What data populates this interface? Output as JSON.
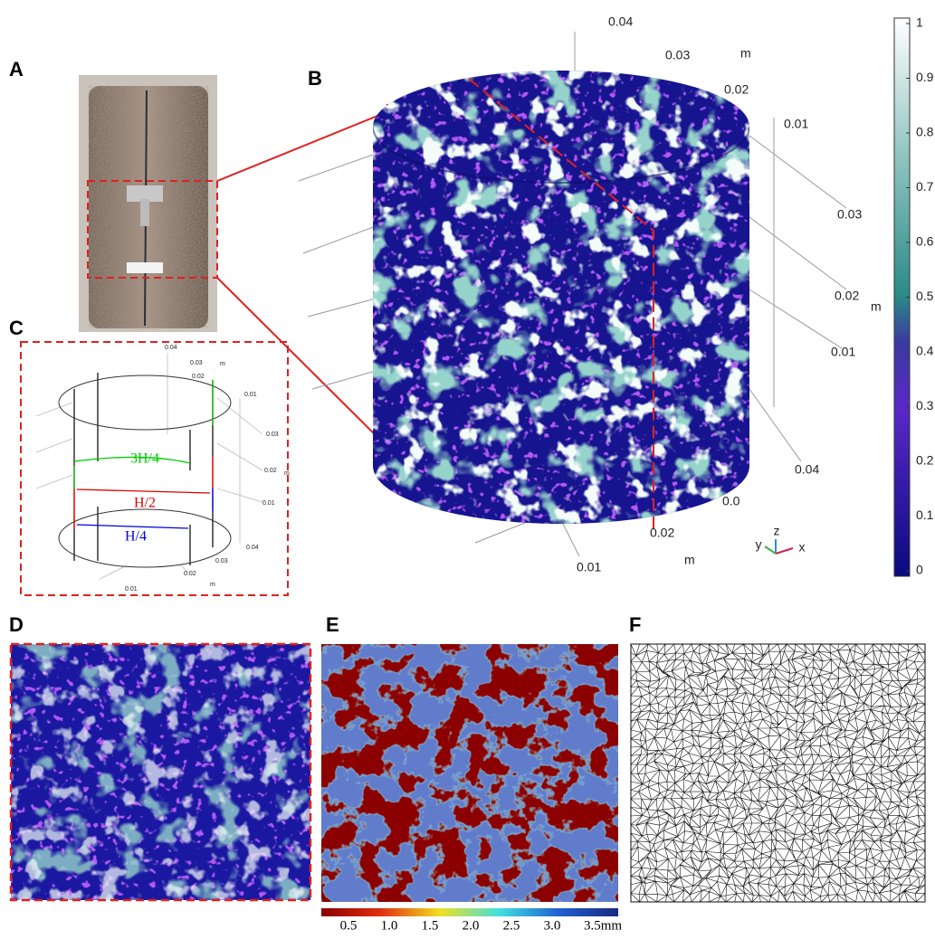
{
  "panels": {
    "a": {
      "label": "A"
    },
    "b": {
      "label": "B",
      "axis_labels": [
        "0.04",
        "0.03",
        "m",
        "0.02",
        "0.01",
        "0.03",
        "0.02",
        "m",
        "0.01",
        "0.04",
        "0.0",
        "0.02",
        "m",
        "0.01"
      ],
      "triad": [
        "y",
        "z",
        "x"
      ],
      "colorbar_ticks": [
        "1",
        "0.9",
        "0.8",
        "0.7",
        "0.6",
        "0.5",
        "0.4",
        "0.3",
        "0.2",
        "0.1",
        "0"
      ]
    },
    "c": {
      "label": "C",
      "axis_labels": [
        "0.04",
        "0.03",
        "m",
        "0.02",
        "0.01",
        "0.03",
        "0.02",
        "m",
        "0.01",
        "0.04",
        "0.03",
        "0.02",
        "m",
        "0.01"
      ],
      "levels": [
        "3H/4",
        "H/2",
        "H/4"
      ]
    },
    "d": {
      "label": "D"
    },
    "e": {
      "label": "E",
      "colorbar_ticks": [
        "0.5",
        "1.0",
        "1.5",
        "2.0",
        "2.5",
        "3.0",
        "3.5mm"
      ]
    },
    "f": {
      "label": "F"
    }
  }
}
